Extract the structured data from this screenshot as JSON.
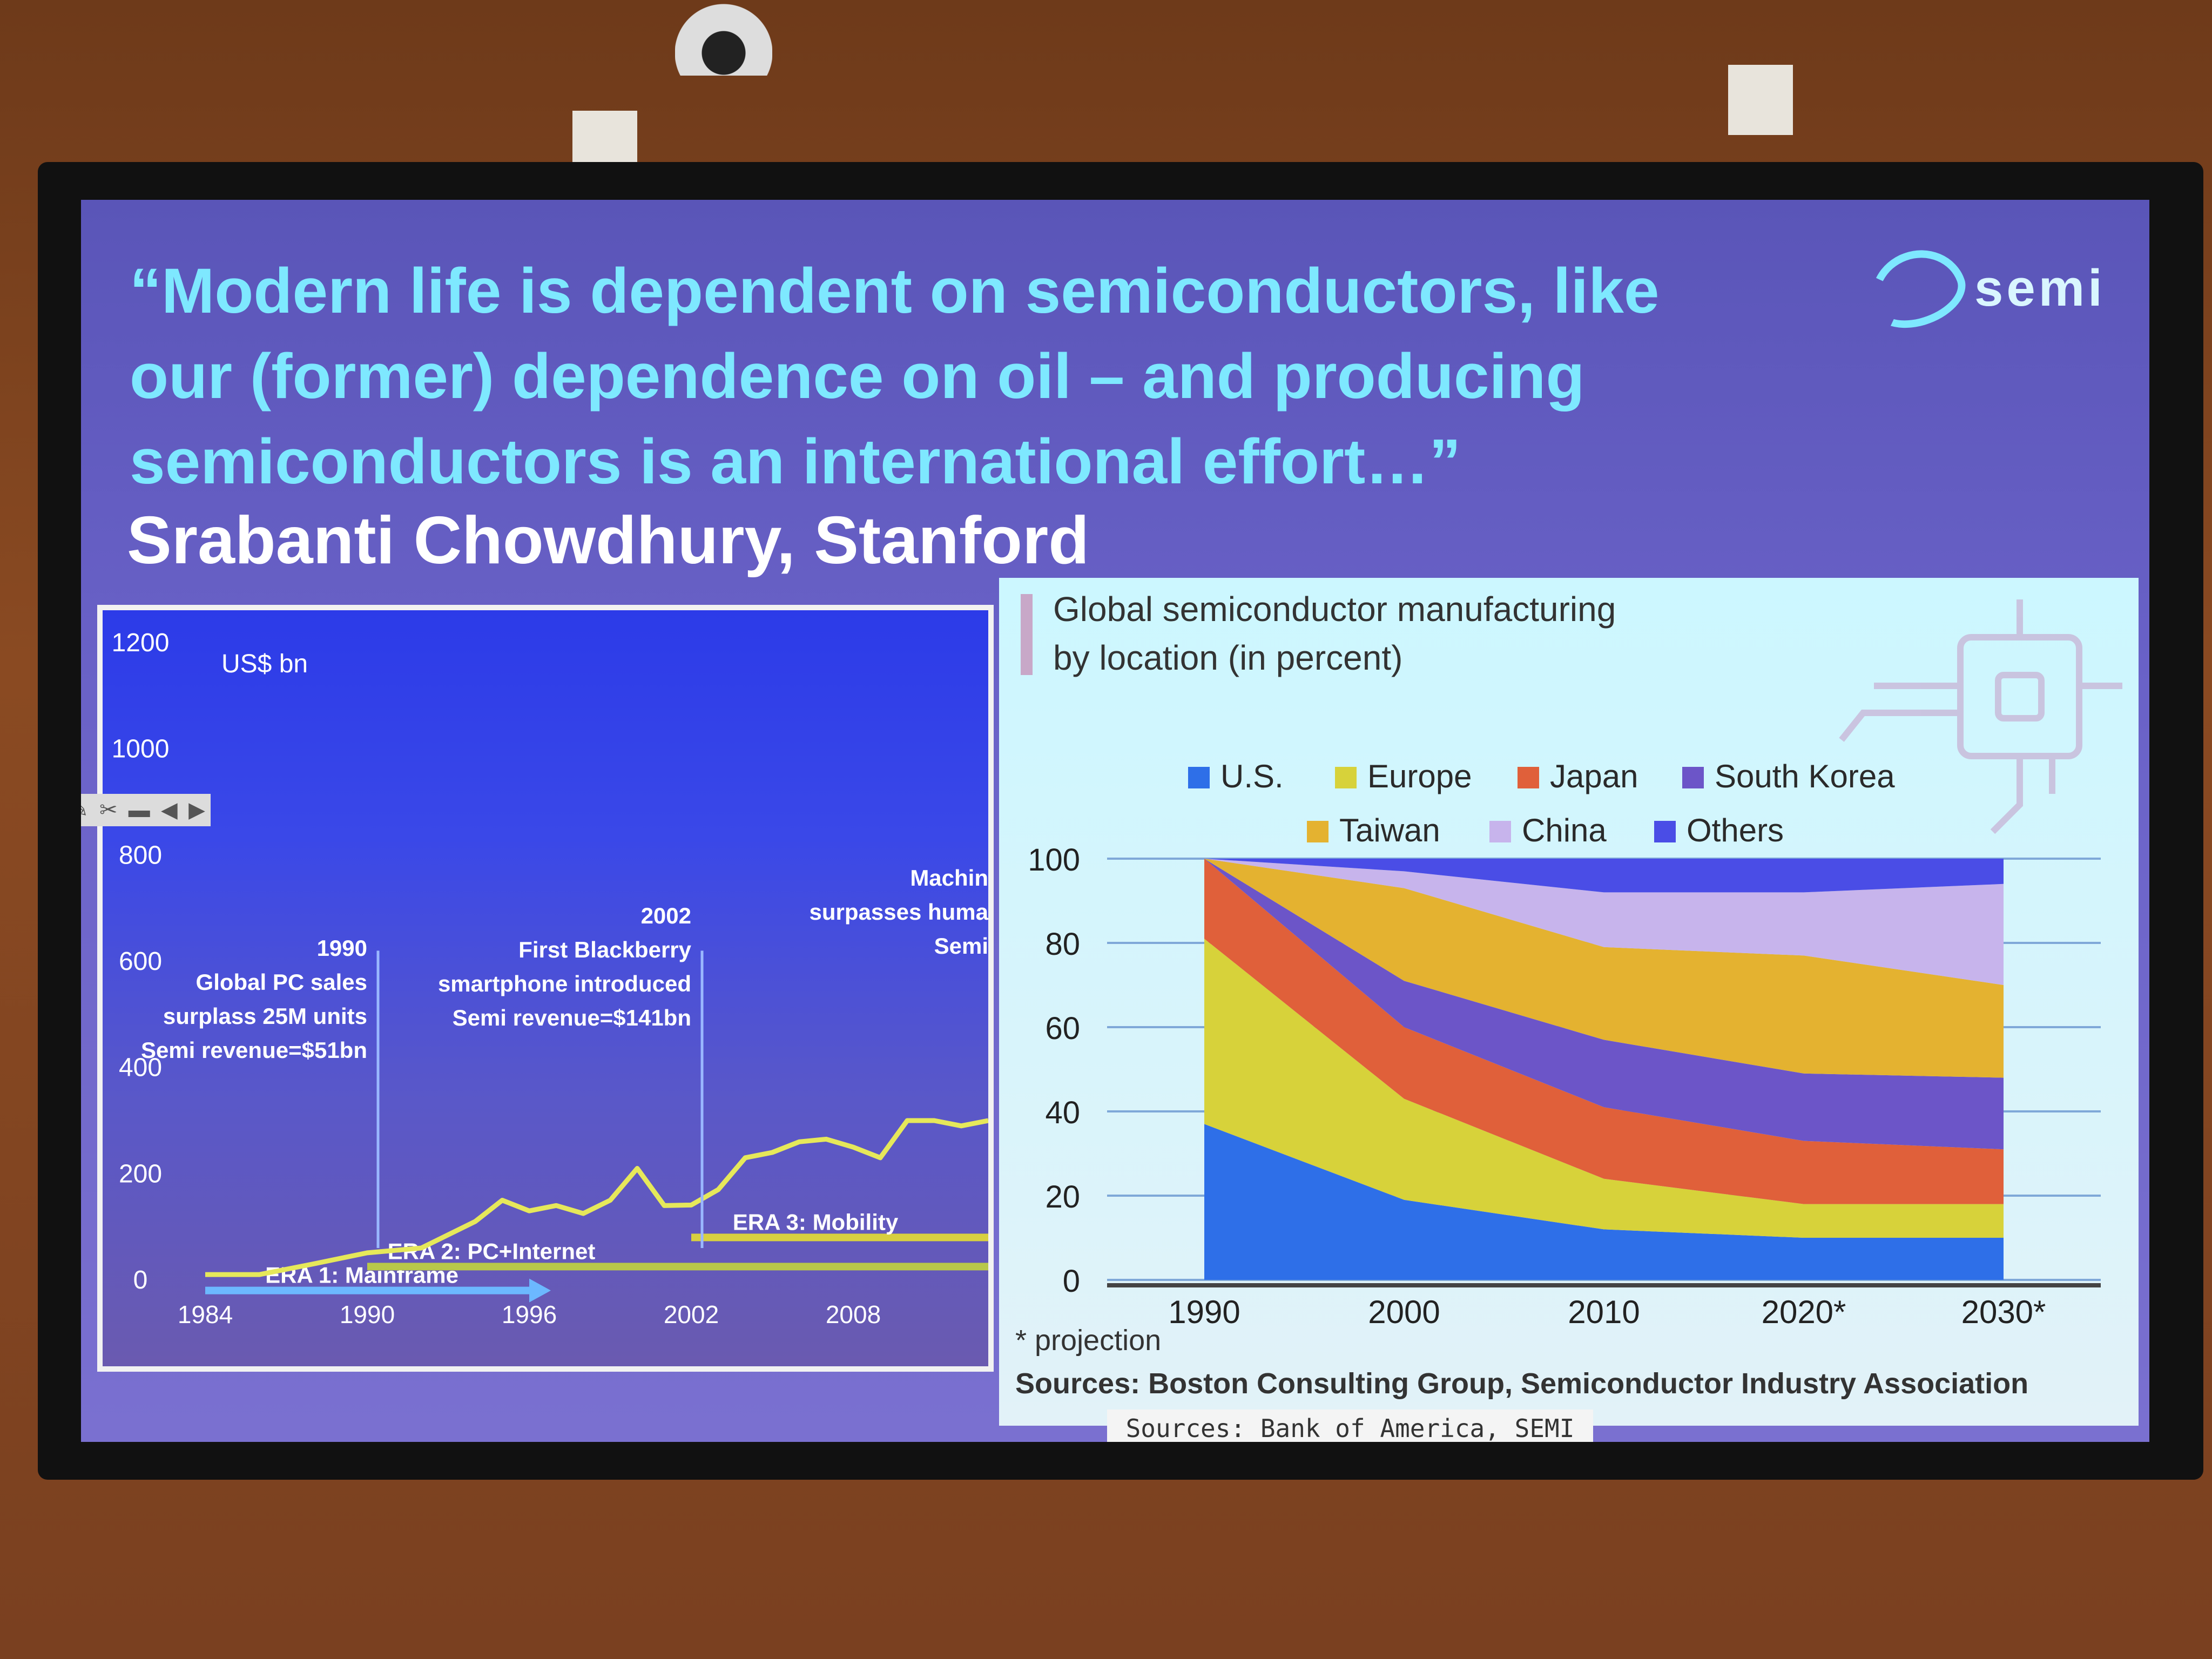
{
  "quote": {
    "lines": [
      "“Modern life is dependent on semiconductors, like",
      "our (former) dependence on oil – and producing",
      "semiconductors is an international effort…”"
    ],
    "author": "Srabanti Chowdhury, Stanford"
  },
  "logo": {
    "text": "semi"
  },
  "toolbar": {
    "icons": [
      "pen-icon",
      "scissors-icon",
      "minus-icon",
      "prev-arrow-icon",
      "next-arrow-icon"
    ]
  },
  "source_box": "Sources: Bank of America, SEMI",
  "chart_data": [
    {
      "type": "line",
      "title": "",
      "ylabel": "US$ bn",
      "ylim": [
        0,
        1200
      ],
      "y_ticks": [
        "0",
        "200",
        "400",
        "600",
        "800",
        "1000",
        "1200"
      ],
      "x_ticks": [
        "1984",
        "1990",
        "1996",
        "2002",
        "2008"
      ],
      "xlim": [
        1984,
        2013
      ],
      "series": [
        {
          "name": "",
          "color": "#e6e85a",
          "x": [
            1984,
            1986,
            1988,
            1990,
            1992,
            1994,
            1995,
            1996,
            1997,
            1998,
            1999,
            2000,
            2001,
            2002,
            2003,
            2004,
            2005,
            2006,
            2007,
            2008,
            2009,
            2010,
            2011,
            2012,
            2013
          ],
          "y": [
            10,
            10,
            30,
            51,
            60,
            110,
            150,
            130,
            140,
            125,
            150,
            210,
            140,
            141,
            170,
            230,
            240,
            260,
            265,
            250,
            230,
            300,
            300,
            290,
            300
          ]
        }
      ],
      "eras": [
        {
          "label": "ERA 1: Mainframe",
          "from": 1984,
          "to": 1996.5,
          "level": -20,
          "color": "#6cb8ff"
        },
        {
          "label": "ERA 2: PC+Internet",
          "from": 1990,
          "to": 2013,
          "level": 25,
          "color": "#b8c84a"
        },
        {
          "label": "ERA 3: Mobility",
          "from": 2002,
          "to": 2013,
          "level": 80,
          "color": "#d8d040"
        }
      ],
      "annotations": [
        {
          "x": 1990,
          "lines": [
            "1990",
            "Global PC sales",
            "surplass 25M units",
            "Semi revenue=$51bn"
          ]
        },
        {
          "x": 2002,
          "lines": [
            "2002",
            "First Blackberry",
            "smartphone introduced",
            "Semi revenue=$141bn"
          ]
        },
        {
          "x": 2013,
          "lines": [
            "Machin",
            "surpasses huma",
            "Semi"
          ]
        }
      ]
    },
    {
      "type": "area",
      "title": "Global semiconductor manufacturing by location (in percent)",
      "title_lines": [
        "Global semiconductor manufacturing",
        "by location (in percent)"
      ],
      "categories": [
        "1990",
        "2000",
        "2010",
        "2020*",
        "2030*"
      ],
      "x": [
        1990,
        2000,
        2010,
        2020,
        2030
      ],
      "ylim": [
        0,
        100
      ],
      "y_ticks": [
        "0",
        "20",
        "40",
        "60",
        "80",
        "100"
      ],
      "stacked": true,
      "legend_position": "top",
      "series": [
        {
          "name": "U.S.",
          "color": "#2e6fe8",
          "values": [
            37,
            19,
            12,
            10,
            10
          ]
        },
        {
          "name": "Europe",
          "color": "#d7d23a",
          "values": [
            44,
            24,
            12,
            8,
            8
          ]
        },
        {
          "name": "Japan",
          "color": "#e0603a",
          "values": [
            19,
            17,
            17,
            15,
            13
          ]
        },
        {
          "name": "South Korea",
          "color": "#6c55c8",
          "values": [
            0,
            11,
            16,
            16,
            17
          ]
        },
        {
          "name": "Taiwan",
          "color": "#e4b230",
          "values": [
            0,
            22,
            22,
            28,
            22
          ]
        },
        {
          "name": "China",
          "color": "#c7b4ec",
          "values": [
            0,
            4,
            13,
            15,
            24
          ]
        },
        {
          "name": "Others",
          "color": "#4a4de6",
          "values": [
            0,
            3,
            8,
            8,
            6
          ]
        }
      ],
      "footnote": "* projection",
      "sources": "Sources: Boston Consulting Group, Semiconductor Industry Association"
    }
  ]
}
